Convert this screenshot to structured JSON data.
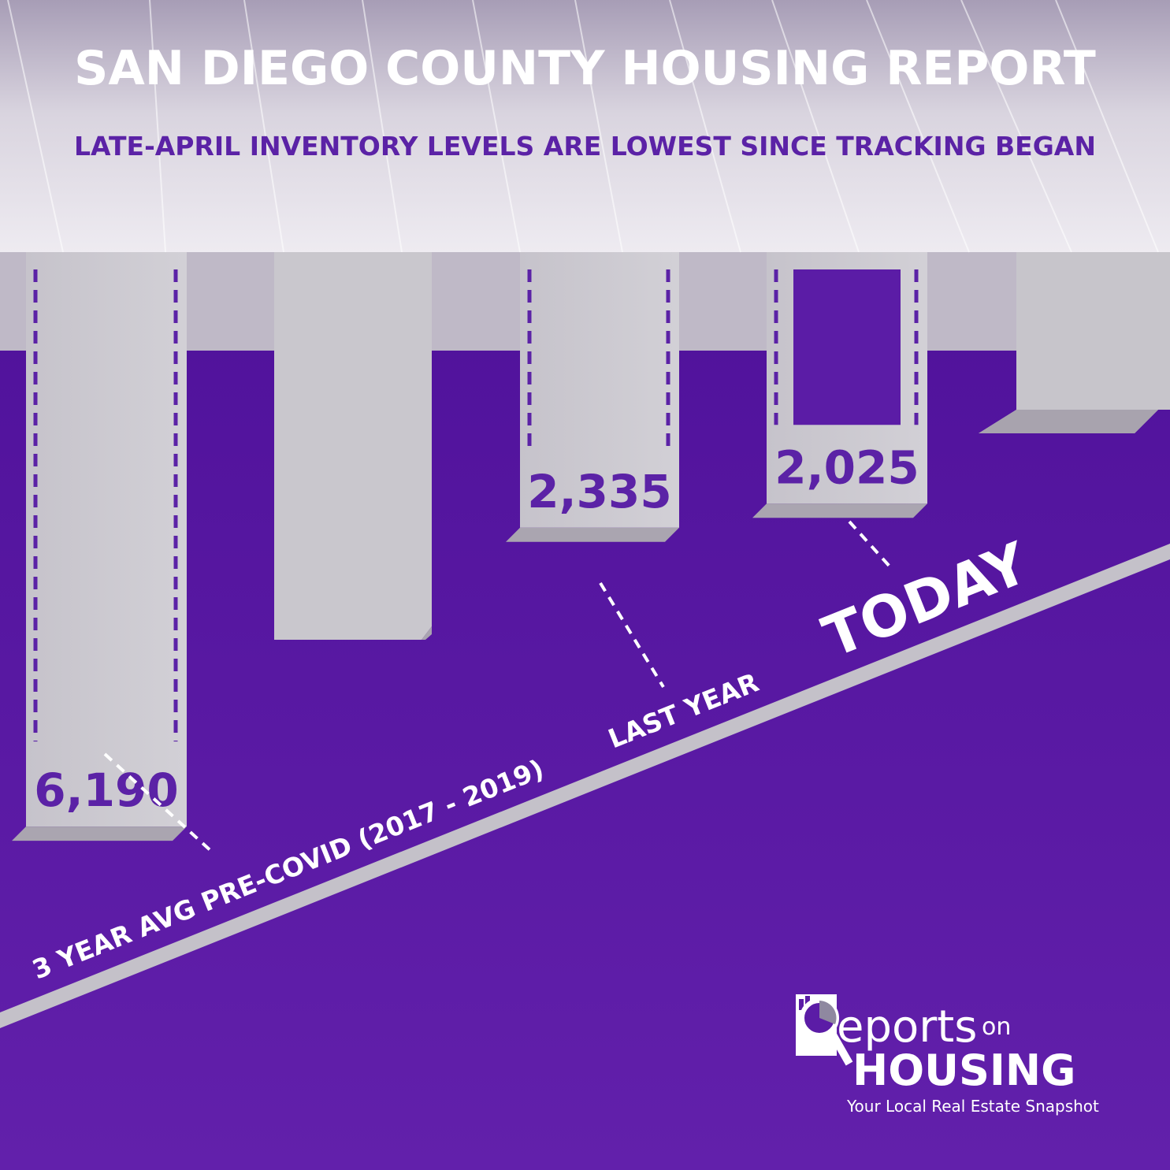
{
  "header": {
    "title": "SAN DIEGO COUNTY HOUSING REPORT",
    "subtitle": "LATE-APRIL INVENTORY LEVELS ARE LOWEST SINCE TRACKING BEGAN"
  },
  "colors": {
    "purple": "#5b1ca6",
    "accent": "#5b22a6",
    "ceiling": "#d6d2dc",
    "block": "#cccacf",
    "text_light": "#ffffff"
  },
  "chart_data": {
    "type": "bar",
    "categories": [
      "3 YEAR AVG PRE-COVID (2017 - 2019)",
      "LAST YEAR",
      "TODAY"
    ],
    "values": [
      6190,
      2335,
      2025
    ],
    "value_labels": [
      "6,190",
      "2,335",
      "2,025"
    ],
    "title": "SAN DIEGO COUNTY HOUSING REPORT",
    "subtitle": "LATE-APRIL INVENTORY LEVELS ARE LOWEST SINCE TRACKING BEGAN",
    "xlabel": "",
    "ylabel": "",
    "grid": false,
    "legend": "none"
  },
  "labels": {
    "avg": "3 YEAR AVG PRE-COVID (2017 - 2019)",
    "last_year": "LAST YEAR",
    "today": "TODAY"
  },
  "logo": {
    "name_part1": "eports",
    "name_part2": "on",
    "name_part3": "HOUSING",
    "tagline": "Your Local Real Estate Snapshot",
    "icon": "magnifier-chart-icon"
  }
}
